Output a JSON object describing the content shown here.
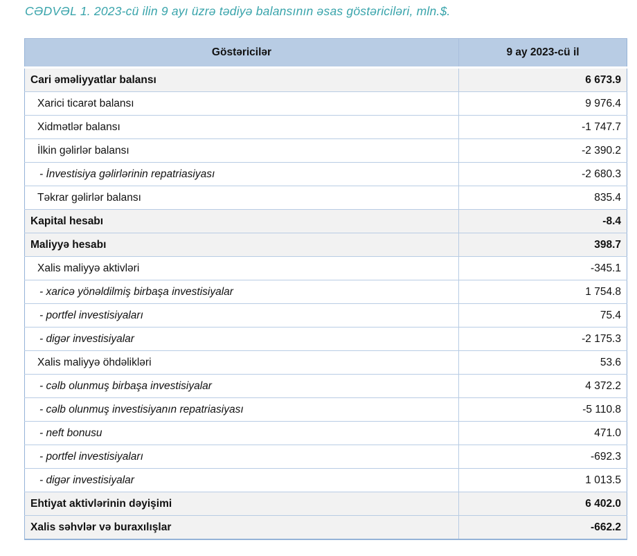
{
  "title": "CƏDVƏL 1. 2023-cü ilin 9 ayı üzrə tədiyə balansının əsas göstəriciləri, mln.$.",
  "colors": {
    "title_text": "#39a4ab",
    "header_bg": "#b8cce4",
    "section_row_bg": "#f2f2f2",
    "outer_border": "#95b3d7",
    "grid_line": "#b8cce4",
    "body_text": "#111111"
  },
  "table": {
    "columns": [
      {
        "label": "Göstəricilər"
      },
      {
        "label": "9 ay 2023-cü il"
      }
    ],
    "rows": [
      {
        "label": "Cari əməliyyatlar balansı",
        "value": "6 673.9",
        "style": "section"
      },
      {
        "label": "Xarici ticarət balansı",
        "value": "9 976.4",
        "style": "sub"
      },
      {
        "label": "Xidmətlər balansı",
        "value": "-1 747.7",
        "style": "sub"
      },
      {
        "label": "İlkin gəlirlər balansı",
        "value": "-2 390.2",
        "style": "sub"
      },
      {
        "label": "- İnvestisiya gəlirlərinin repatriasiyası",
        "value": "-2 680.3",
        "style": "detail"
      },
      {
        "label": "Təkrar gəlirlər balansı",
        "value": "835.4",
        "style": "sub"
      },
      {
        "label": "Kapital hesabı",
        "value": "-8.4",
        "style": "section"
      },
      {
        "label": "Maliyyə hesabı",
        "value": "398.7",
        "style": "section"
      },
      {
        "label": "Xalis maliyyə aktivləri",
        "value": "-345.1",
        "style": "sub"
      },
      {
        "label": "- xaricə yönəldilmiş birbaşa investisiyalar",
        "value": "1 754.8",
        "style": "detail"
      },
      {
        "label": "- portfel investisiyaları",
        "value": "75.4",
        "style": "detail"
      },
      {
        "label": "- digər investisiyalar",
        "value": "-2 175.3",
        "style": "detail"
      },
      {
        "label": "Xalis maliyyə öhdəlikləri",
        "value": "53.6",
        "style": "sub"
      },
      {
        "label": "- cəlb olunmuş birbaşa investisiyalar",
        "value": "4 372.2",
        "style": "detail"
      },
      {
        "label": "- cəlb olunmuş investisiyanın repatriasiyası",
        "value": "-5 110.8",
        "style": "detail"
      },
      {
        "label": "- neft bonusu",
        "value": "471.0",
        "style": "detail"
      },
      {
        "label": "- portfel investisiyaları",
        "value": "-692.3",
        "style": "detail"
      },
      {
        "label": "- digər investisiyalar",
        "value": "1 013.5",
        "style": "detail"
      },
      {
        "label": "Ehtiyat aktivlərinin dəyişimi",
        "value": "6 402.0",
        "style": "section"
      },
      {
        "label": "Xalis səhvlər və buraxılışlar",
        "value": "-662.2",
        "style": "section"
      }
    ]
  }
}
